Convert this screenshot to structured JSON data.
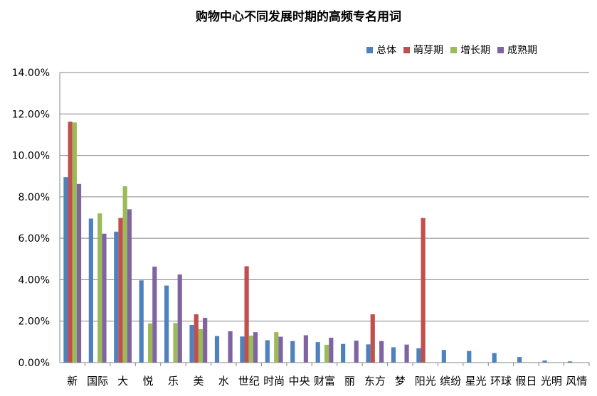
{
  "chart_data": {
    "type": "bar",
    "title": "购物中心不同发展时期的高频专名用词",
    "xlabel": "",
    "ylabel": "",
    "ylim": [
      0,
      14
    ],
    "y_ticks": [
      "0.00%",
      "2.00%",
      "4.00%",
      "6.00%",
      "8.00%",
      "10.00%",
      "12.00%",
      "14.00%"
    ],
    "grid": true,
    "legend_position": "top-right",
    "categories": [
      "新",
      "国际",
      "大",
      "悦",
      "乐",
      "美",
      "水",
      "世纪",
      "时尚",
      "中央",
      "财富",
      "丽",
      "东方",
      "梦",
      "阳光",
      "缤纷",
      "星光",
      "环球",
      "假日",
      "光明",
      "风情"
    ],
    "series": [
      {
        "name": "总体",
        "color": "#4f81bd",
        "values": [
          8.95,
          6.95,
          6.32,
          3.97,
          3.72,
          1.82,
          1.28,
          1.26,
          1.08,
          1.04,
          0.99,
          0.9,
          0.88,
          0.74,
          0.69,
          0.61,
          0.56,
          0.46,
          0.27,
          0.1,
          0.06
        ]
      },
      {
        "name": "萌芽期",
        "color": "#c0504d",
        "values": [
          11.63,
          0,
          6.98,
          0,
          0,
          2.33,
          0,
          4.65,
          0,
          0,
          0,
          0,
          2.33,
          0,
          6.98,
          0,
          0,
          0,
          0,
          0,
          0
        ]
      },
      {
        "name": "增长期",
        "color": "#9bbb59",
        "values": [
          11.59,
          7.2,
          8.51,
          1.89,
          1.91,
          1.62,
          0,
          1.3,
          1.47,
          0,
          0.86,
          0,
          0,
          0,
          0,
          0,
          0,
          0,
          0,
          0,
          0
        ]
      },
      {
        "name": "成熟期",
        "color": "#8064a2",
        "values": [
          8.62,
          6.22,
          7.4,
          4.63,
          4.25,
          2.16,
          1.51,
          1.47,
          1.25,
          1.32,
          1.2,
          1.06,
          1.04,
          0.87,
          0,
          0,
          0,
          0,
          0,
          0,
          0
        ]
      }
    ]
  }
}
